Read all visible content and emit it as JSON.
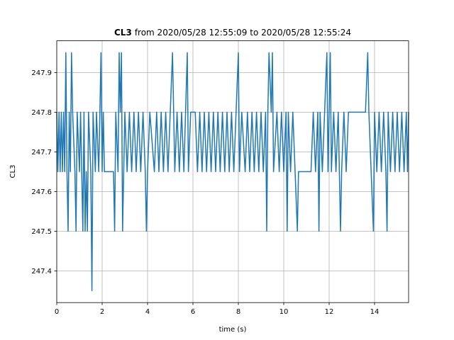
{
  "chart_data": {
    "type": "line",
    "title": {
      "bold": "CL3",
      "text": "from 2020/05/28 12:55:09 to 2020/05/28 12:55:24"
    },
    "x_label": "time (s)",
    "y_label": "CL3",
    "color": "#1f77b4",
    "x": [
      0,
      0.05,
      0.1,
      0.15,
      0.2,
      0.25,
      0.3,
      0.35,
      0.4,
      0.45,
      0.5,
      0.55,
      0.6,
      0.65,
      0.7,
      0.8,
      0.85,
      0.9,
      1.0,
      1.05,
      1.1,
      1.15,
      1.2,
      1.25,
      1.3,
      1.35,
      1.4,
      1.5,
      1.55,
      1.6,
      1.7,
      1.75,
      1.85,
      1.9,
      1.95,
      2.0,
      2.05,
      2.1,
      2.5,
      2.55,
      2.6,
      2.7,
      2.75,
      2.8,
      2.85,
      2.9,
      2.95,
      3.0,
      3.1,
      3.2,
      3.3,
      3.4,
      3.5,
      3.6,
      3.7,
      3.8,
      3.9,
      3.95,
      4.0,
      4.1,
      4.3,
      4.4,
      4.5,
      4.6,
      4.7,
      4.8,
      4.9,
      5.0,
      5.1,
      5.2,
      5.3,
      5.4,
      5.5,
      5.6,
      5.75,
      5.8,
      5.9,
      6.1,
      6.2,
      6.3,
      6.4,
      6.5,
      6.6,
      6.7,
      6.8,
      6.9,
      7.0,
      7.1,
      7.2,
      7.3,
      7.4,
      7.5,
      7.6,
      7.7,
      7.8,
      7.9,
      8.0,
      8.05,
      8.15,
      8.3,
      8.4,
      8.5,
      8.6,
      8.7,
      8.8,
      8.9,
      9.0,
      9.1,
      9.2,
      9.25,
      9.3,
      9.35,
      9.45,
      9.5,
      9.55,
      9.7,
      9.8,
      9.9,
      10.0,
      10.1,
      10.15,
      10.2,
      10.3,
      10.4,
      10.5,
      10.6,
      10.65,
      11.2,
      11.3,
      11.4,
      11.5,
      11.55,
      11.6,
      11.7,
      11.8,
      11.9,
      11.95,
      12.0,
      12.05,
      12.1,
      12.2,
      12.3,
      12.4,
      12.5,
      12.55,
      12.65,
      12.75,
      12.85,
      13.6,
      13.7,
      13.75,
      13.85,
      13.95,
      14.0,
      14.1,
      14.2,
      14.3,
      14.4,
      14.5,
      14.55,
      14.6,
      14.7,
      14.8,
      14.9,
      15.0,
      15.1,
      15.2,
      15.3,
      15.4,
      15.45,
      15.5
    ],
    "values": [
      247.8,
      247.65,
      247.8,
      247.65,
      247.8,
      247.65,
      247.8,
      247.65,
      247.95,
      247.65,
      247.5,
      247.8,
      247.65,
      247.95,
      247.8,
      247.65,
      247.5,
      247.8,
      247.65,
      247.8,
      247.65,
      247.5,
      247.8,
      247.5,
      247.65,
      247.5,
      247.8,
      247.65,
      247.35,
      247.8,
      247.65,
      247.8,
      247.65,
      247.8,
      247.95,
      247.65,
      247.8,
      247.65,
      247.65,
      247.5,
      247.8,
      247.65,
      247.95,
      247.8,
      247.95,
      247.5,
      247.65,
      247.8,
      247.65,
      247.8,
      247.65,
      247.8,
      247.65,
      247.8,
      247.65,
      247.8,
      247.65,
      247.5,
      247.65,
      247.8,
      247.65,
      247.8,
      247.65,
      247.8,
      247.65,
      247.8,
      247.65,
      247.8,
      247.95,
      247.65,
      247.8,
      247.65,
      247.8,
      247.65,
      247.95,
      247.65,
      247.8,
      247.8,
      247.65,
      247.8,
      247.65,
      247.8,
      247.65,
      247.8,
      247.65,
      247.8,
      247.65,
      247.8,
      247.65,
      247.8,
      247.65,
      247.8,
      247.65,
      247.8,
      247.65,
      247.8,
      247.95,
      247.65,
      247.8,
      247.65,
      247.8,
      247.65,
      247.8,
      247.65,
      247.8,
      247.65,
      247.8,
      247.65,
      247.8,
      247.5,
      247.8,
      247.95,
      247.8,
      247.95,
      247.65,
      247.8,
      247.65,
      247.8,
      247.65,
      247.8,
      247.5,
      247.8,
      247.65,
      247.8,
      247.65,
      247.5,
      247.65,
      247.65,
      247.8,
      247.65,
      247.8,
      247.5,
      247.8,
      247.65,
      247.8,
      247.95,
      247.65,
      247.8,
      247.95,
      247.65,
      247.8,
      247.65,
      247.8,
      247.5,
      247.65,
      247.8,
      247.65,
      247.8,
      247.8,
      247.95,
      247.8,
      247.65,
      247.5,
      247.8,
      247.65,
      247.8,
      247.65,
      247.8,
      247.65,
      247.5,
      247.8,
      247.65,
      247.8,
      247.65,
      247.8,
      247.65,
      247.8,
      247.65,
      247.8,
      247.65,
      247.8
    ],
    "xlim": [
      0,
      15.5
    ],
    "ylim": [
      247.32,
      247.98
    ],
    "xticks": [
      0,
      2,
      4,
      6,
      8,
      10,
      12,
      14
    ],
    "yticks": [
      247.4,
      247.5,
      247.6,
      247.7,
      247.8,
      247.9
    ],
    "grid": true
  }
}
